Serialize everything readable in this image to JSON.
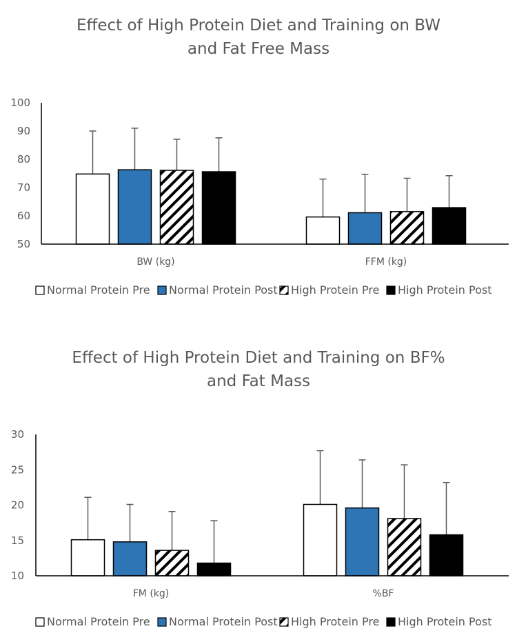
{
  "chart_data": [
    {
      "type": "bar",
      "title_lines": [
        "Effect of High Protein Diet and Training on BW",
        "and Fat Free Mass"
      ],
      "categories": [
        "BW (kg)",
        "FFM (kg)"
      ],
      "ylim": [
        50,
        100
      ],
      "yticks": [
        50,
        60,
        70,
        80,
        90,
        100
      ],
      "series": [
        {
          "name": "Normal Protein Pre",
          "values": [
            74.8,
            59.6
          ],
          "errors": [
            15.2,
            13.4
          ]
        },
        {
          "name": "Normal Protein Post",
          "values": [
            76.3,
            61.1
          ],
          "errors": [
            14.7,
            13.6
          ]
        },
        {
          "name": "High Protein Pre",
          "values": [
            76.1,
            61.5
          ],
          "errors": [
            11.0,
            11.8
          ]
        },
        {
          "name": "High Protein Post",
          "values": [
            75.6,
            62.9
          ],
          "errors": [
            12.0,
            11.3
          ]
        }
      ],
      "legend_position": "bottom",
      "grid": false
    },
    {
      "type": "bar",
      "title_lines": [
        "Effect of High Protein Diet and Training on BF%",
        "and Fat Mass"
      ],
      "categories": [
        "FM (kg)",
        "%BF"
      ],
      "ylim": [
        10,
        30
      ],
      "yticks": [
        10,
        15,
        20,
        25,
        30
      ],
      "series": [
        {
          "name": "Normal Protein Pre",
          "values": [
            15.1,
            20.1
          ],
          "errors": [
            6.0,
            7.6
          ]
        },
        {
          "name": "Normal Protein Post",
          "values": [
            14.8,
            19.6
          ],
          "errors": [
            5.3,
            6.8
          ]
        },
        {
          "name": "High Protein Pre",
          "values": [
            13.6,
            18.1
          ],
          "errors": [
            5.5,
            7.6
          ]
        },
        {
          "name": "High Protein Post",
          "values": [
            11.8,
            15.8
          ],
          "errors": [
            6.0,
            7.4
          ]
        }
      ],
      "legend_position": "bottom",
      "grid": false
    }
  ],
  "style": {
    "series_fills": [
      "#ffffff",
      "#2e75b6",
      "hatch",
      "#000000"
    ],
    "axis_color": "#000000",
    "error_bar_color": "#595959",
    "text_color": "#595959"
  }
}
